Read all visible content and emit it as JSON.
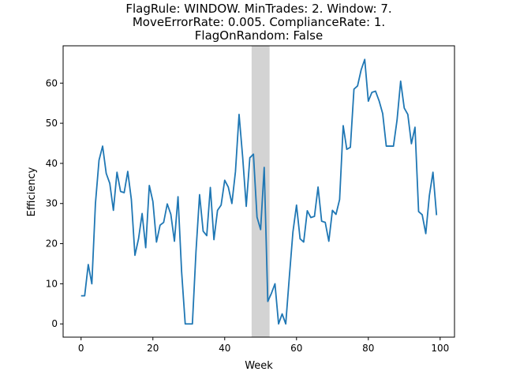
{
  "chart_data": {
    "type": "line",
    "title_lines": [
      "FlagRule: WINDOW. MinTrades: 2. Window: 7.",
      "MoveErrorRate: 0.005. ComplianceRate: 1.",
      "FlagOnRandom: False"
    ],
    "xlabel": "Week",
    "ylabel": "Efficiency",
    "xlim": [
      -5,
      104
    ],
    "ylim": [
      -3.3,
      69.3
    ],
    "xticks": [
      0,
      20,
      40,
      60,
      80,
      100
    ],
    "yticks": [
      0,
      10,
      20,
      30,
      40,
      50,
      60
    ],
    "grid": false,
    "highlight_span": {
      "x0": 47.5,
      "x1": 52.5,
      "color": "#d3d3d3"
    },
    "series": [
      {
        "color": "#1f77b4",
        "x": [
          0,
          1,
          2,
          3,
          4,
          5,
          6,
          7,
          8,
          9,
          10,
          11,
          12,
          13,
          14,
          15,
          16,
          17,
          18,
          19,
          20,
          21,
          22,
          23,
          24,
          25,
          26,
          27,
          28,
          29,
          30,
          31,
          32,
          33,
          34,
          35,
          36,
          37,
          38,
          39,
          40,
          41,
          42,
          43,
          44,
          45,
          46,
          47,
          48,
          49,
          50,
          51,
          52,
          53,
          54,
          55,
          56,
          57,
          58,
          59,
          60,
          61,
          62,
          63,
          64,
          65,
          66,
          67,
          68,
          69,
          70,
          71,
          72,
          73,
          74,
          75,
          76,
          77,
          78,
          79,
          80,
          81,
          82,
          83,
          84,
          85,
          86,
          87,
          88,
          89,
          90,
          91,
          92,
          93,
          94,
          95,
          96,
          97,
          98,
          99
        ],
        "values": [
          7,
          7,
          14.8,
          10,
          30,
          40.8,
          44.3,
          37.5,
          35,
          28.3,
          37.8,
          33,
          32.7,
          38,
          31,
          17.1,
          21.2,
          27.5,
          19,
          34.5,
          30.5,
          20.4,
          24.6,
          25.3,
          29.9,
          27.3,
          20.6,
          31.7,
          13,
          0,
          0,
          0,
          18,
          32.2,
          23.1,
          22,
          34,
          21,
          28.3,
          29.6,
          35.8,
          34.1,
          30,
          38,
          52.2,
          41.6,
          29.3,
          41.4,
          42.3,
          26.6,
          23.5,
          39,
          5.6,
          7.6,
          10,
          0,
          2.5,
          0,
          11.7,
          22.9,
          29.6,
          21.2,
          20.4,
          28.2,
          26.5,
          26.8,
          34.1,
          25.6,
          25.3,
          20.6,
          28.3,
          27.3,
          31,
          49.4,
          43.5,
          44,
          58.5,
          59.3,
          63.3,
          65.9,
          55.5,
          57.7,
          58,
          55.6,
          52.4,
          44.3,
          44.3,
          44.3,
          50.8,
          60.5,
          53.8,
          52.2,
          44.9,
          49,
          28,
          27.2,
          22.5,
          32,
          37.8,
          27.1
        ]
      }
    ]
  }
}
